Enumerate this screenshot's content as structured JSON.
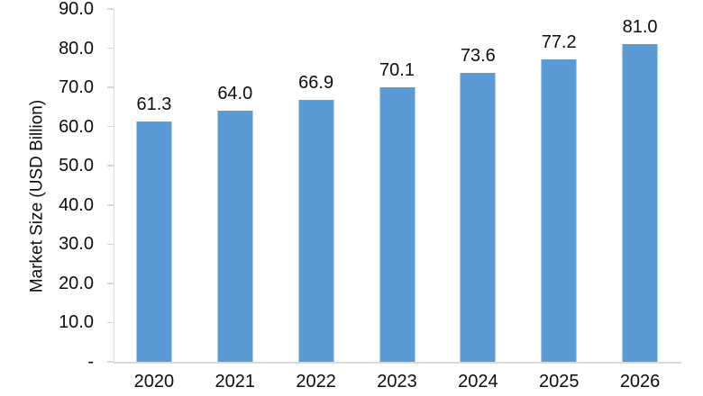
{
  "chart_data": {
    "type": "bar",
    "title": "",
    "categories": [
      "2020",
      "2021",
      "2022",
      "2023",
      "2024",
      "2025",
      "2026"
    ],
    "values": [
      61.3,
      64.0,
      66.9,
      70.1,
      73.6,
      77.2,
      81.0
    ],
    "value_labels": [
      "61.3",
      "64.0",
      "66.9",
      "70.1",
      "73.6",
      "77.2",
      "81.0"
    ],
    "xlabel": "",
    "ylabel": "Market Size (USD Billion)",
    "ylim": [
      0,
      90
    ],
    "ytick_values": [
      90,
      80,
      70,
      60,
      50,
      40,
      30,
      20,
      10,
      0
    ],
    "ytick_labels": [
      "90.0",
      "80.0",
      "70.0",
      "60.0",
      "50.0",
      "40.0",
      "30.0",
      "20.0",
      "10.0",
      "-"
    ],
    "grid": false,
    "legend_position": "none",
    "colors": {
      "bar": "#5B9BD5",
      "axis": "#D9D9D9",
      "text": "#0D0D0D"
    }
  }
}
